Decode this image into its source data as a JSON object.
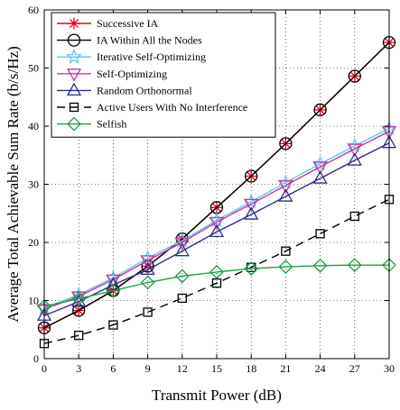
{
  "chart_data": {
    "type": "line",
    "title": "",
    "xlabel": "Transmit Power (dB)",
    "ylabel": "Average Total Achievable Sum Rate (b/s/Hz)",
    "xlim": [
      0,
      30
    ],
    "ylim": [
      0,
      60
    ],
    "xticks": [
      0,
      3,
      6,
      9,
      12,
      15,
      18,
      21,
      24,
      27,
      30
    ],
    "yticks": [
      0,
      10,
      20,
      30,
      40,
      50,
      60
    ],
    "grid": true,
    "legend_position": "top-left",
    "x": [
      0,
      3,
      6,
      9,
      12,
      15,
      18,
      21,
      24,
      27,
      30
    ],
    "series": [
      {
        "name": "Successive IA",
        "color": "#e8001c",
        "marker": "asterisk",
        "dash": "solid",
        "values": [
          5.3,
          8.3,
          11.7,
          15.9,
          20.6,
          26.0,
          31.4,
          37.0,
          42.8,
          48.6,
          54.4
        ]
      },
      {
        "name": "IA Within All the Nodes",
        "color": "#000000",
        "marker": "circle",
        "dash": "solid",
        "values": [
          5.3,
          8.3,
          11.7,
          15.9,
          20.6,
          26.0,
          31.4,
          37.0,
          42.8,
          48.6,
          54.4
        ]
      },
      {
        "name": "Iterative Self-Optimizing",
        "color": "#5bc8ee",
        "marker": "star",
        "dash": "solid",
        "values": [
          8.7,
          11.0,
          13.9,
          17.3,
          20.3,
          23.8,
          27.0,
          30.3,
          33.5,
          36.6,
          39.6
        ]
      },
      {
        "name": "Self-Optimizing",
        "color": "#c8379e",
        "marker": "triangle-down",
        "dash": "solid",
        "values": [
          8.5,
          10.7,
          13.6,
          16.9,
          20.0,
          23.5,
          26.6,
          29.8,
          33.0,
          36.1,
          39.1
        ]
      },
      {
        "name": "Random Orthonormal",
        "color": "#2b2f8c",
        "marker": "triangle-up",
        "dash": "solid",
        "values": [
          7.4,
          9.8,
          12.7,
          15.3,
          18.5,
          21.8,
          24.8,
          27.9,
          31.0,
          34.1,
          37.1
        ]
      },
      {
        "name": "Active Users With No Interference",
        "color": "#000000",
        "marker": "square",
        "dash": "dashed",
        "values": [
          2.6,
          4.0,
          5.8,
          8.0,
          10.4,
          13.0,
          15.7,
          18.5,
          21.5,
          24.5,
          27.4
        ]
      },
      {
        "name": "Selfish",
        "color": "#1aa043",
        "marker": "diamond",
        "dash": "solid",
        "values": [
          9.0,
          10.3,
          11.7,
          13.1,
          14.2,
          14.9,
          15.5,
          15.8,
          16.0,
          16.1,
          16.1
        ]
      }
    ]
  }
}
